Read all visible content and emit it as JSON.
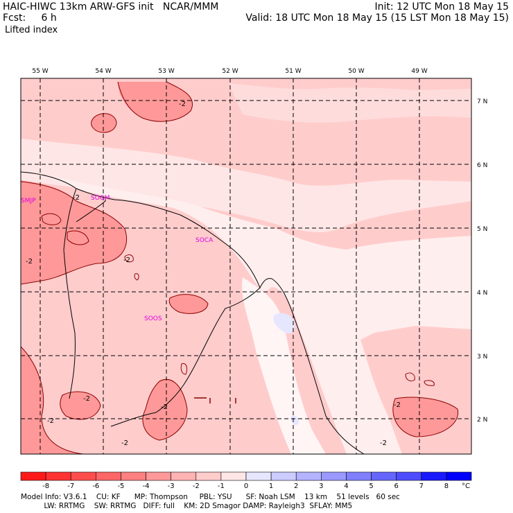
{
  "header": {
    "title": "HAIC-HIWC 13km ARW-GFS init   NCAR/MMM",
    "fcst": "Fcst:     6 h",
    "init": "Init: 12 UTC Mon 18 May 15",
    "valid": "Valid: 18 UTC Mon 18 May 15 (15 LST Mon 18 May 15)",
    "field": "Lifted index"
  },
  "axes": {
    "lon_labels": [
      "55 W",
      "54 W",
      "53 W",
      "52 W",
      "51 W",
      "50 W",
      "49 W"
    ],
    "lat_labels": [
      "7 N",
      "6 N",
      "5 N",
      "4 N",
      "3 N",
      "2 N"
    ]
  },
  "stations": [
    "SMJP",
    "SOGM",
    "SOCA",
    "SOOS"
  ],
  "contour_label": "-2",
  "legend": {
    "ticks": [
      "-8",
      "-7",
      "-6",
      "-5",
      "-4",
      "-3",
      "-2",
      "-1",
      "0",
      "1",
      "2",
      "3",
      "4",
      "5",
      "6",
      "7",
      "8"
    ],
    "unit": "°C",
    "colors": [
      "#ff1a1a",
      "#ff3333",
      "#ff4d4d",
      "#ff6666",
      "#ff8080",
      "#ff9999",
      "#ffb3b3",
      "#ffcccc",
      "#ffe6e6",
      "#e6e6ff",
      "#ccccff",
      "#b3b3ff",
      "#9999ff",
      "#8080ff",
      "#6666ff",
      "#4d4dff",
      "#1a1aff",
      "#0000ff"
    ]
  },
  "footer": {
    "line1": "Model Info: V3.6.1    CU: KF      MP: Thompson     PBL: YSU      SF: Noah LSM    13 km    51 levels   60 sec",
    "line2": "          LW: RRTMG    SW: RRTMG   DIFF: full    KM: 2D Smagor DAMP: Rayleigh3  SFLAY: MM5"
  }
}
